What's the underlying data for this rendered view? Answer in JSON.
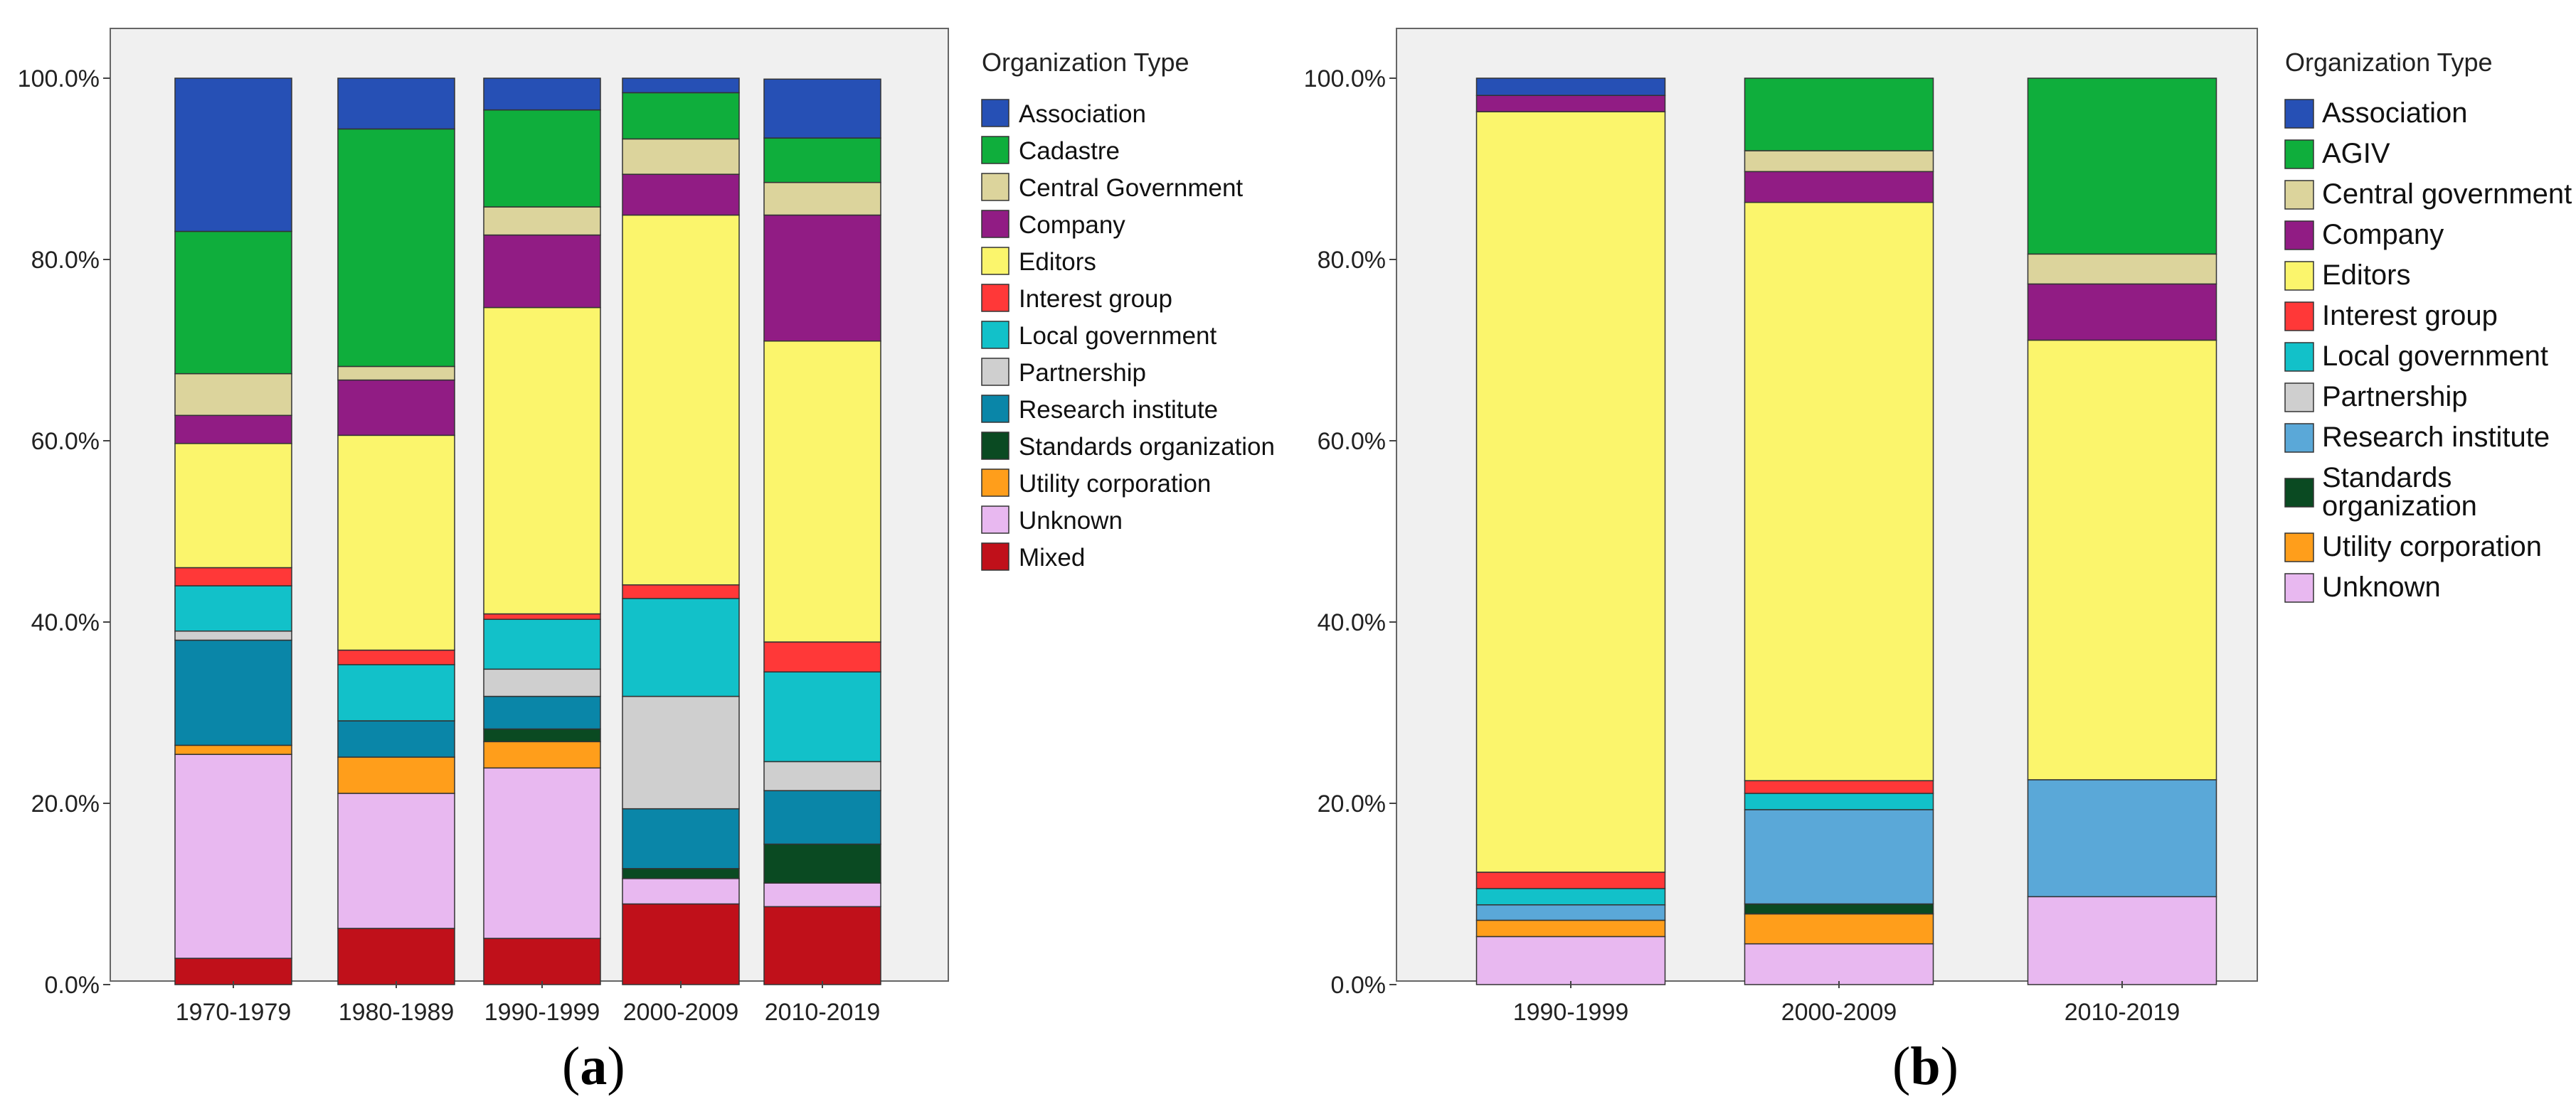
{
  "chart_data": [
    {
      "type": "bar",
      "stacked": true,
      "panel_label": "a",
      "legend_title": "Organization Type",
      "y_ticks": [
        "0.0%",
        "20.0%",
        "40.0%",
        "60.0%",
        "80.0%",
        "100.0%"
      ],
      "ylim": [
        0,
        100
      ],
      "categories": [
        "1970-1979",
        "1980-1989",
        "1990-1999",
        "2000-2009",
        "2010-2019"
      ],
      "legend_order": [
        "Association",
        "Cadastre",
        "Central Government",
        "Company",
        "Editors",
        "Interest group",
        "Local government",
        "Partnership",
        "Research institute",
        "Standards organization",
        "Utility corporation",
        "Unknown",
        "Mixed"
      ],
      "series": [
        {
          "name": "Mixed",
          "color": "#c0101a",
          "values": [
            2.9,
            6.2,
            5.1,
            8.9,
            8.6
          ]
        },
        {
          "name": "Unknown",
          "color": "#e8b8f0",
          "values": [
            22.5,
            14.9,
            18.8,
            2.8,
            2.6
          ]
        },
        {
          "name": "Utility corporation",
          "color": "#ff9e1b",
          "values": [
            1.0,
            4.0,
            2.9,
            0,
            0
          ]
        },
        {
          "name": "Standards organization",
          "color": "#0a4a22",
          "values": [
            0,
            0,
            1.4,
            1.1,
            4.3
          ]
        },
        {
          "name": "Research institute",
          "color": "#0a86a8",
          "values": [
            11.6,
            4.0,
            3.6,
            6.6,
            5.9
          ]
        },
        {
          "name": "Partnership",
          "color": "#cfcfcf",
          "values": [
            1.0,
            0,
            3.0,
            12.4,
            3.2
          ]
        },
        {
          "name": "Local government",
          "color": "#12c1c9",
          "values": [
            5.0,
            6.2,
            5.5,
            10.8,
            9.9
          ]
        },
        {
          "name": "Interest group",
          "color": "#ff3838",
          "values": [
            2.0,
            1.6,
            0.6,
            1.5,
            3.3
          ]
        },
        {
          "name": "Editors",
          "color": "#fbf56c",
          "values": [
            13.7,
            23.7,
            33.8,
            40.8,
            33.2
          ]
        },
        {
          "name": "Company",
          "color": "#911c84",
          "values": [
            3.1,
            6.1,
            8.0,
            4.5,
            13.9
          ]
        },
        {
          "name": "Central Government",
          "color": "#dcd49c",
          "values": [
            4.6,
            1.5,
            3.1,
            3.9,
            3.6
          ]
        },
        {
          "name": "Cadastre",
          "color": "#0fae3c",
          "values": [
            15.7,
            26.2,
            10.7,
            5.1,
            4.9
          ]
        },
        {
          "name": "Association",
          "color": "#2650b5",
          "values": [
            16.9,
            5.6,
            3.5,
            1.6,
            6.5
          ]
        }
      ]
    },
    {
      "type": "bar",
      "stacked": true,
      "panel_label": "b",
      "legend_title": "Organization Type",
      "y_ticks": [
        "0.0%",
        "20.0%",
        "40.0%",
        "60.0%",
        "80.0%",
        "100.0%"
      ],
      "ylim": [
        0,
        100
      ],
      "categories": [
        "1990-1999",
        "2000-2009",
        "2010-2019"
      ],
      "legend_order": [
        "Association",
        "AGIV",
        "Central government",
        "Company",
        "Editors",
        "Interest group",
        "Local government",
        "Partnership",
        "Research institute",
        "Standards organization",
        "Utility corporation",
        "Unknown"
      ],
      "series": [
        {
          "name": "Unknown",
          "color": "#e8b8f0",
          "values": [
            5.3,
            4.5,
            9.7
          ]
        },
        {
          "name": "Utility corporation",
          "color": "#ff9e1b",
          "values": [
            1.8,
            3.3,
            0
          ]
        },
        {
          "name": "Standards organization",
          "color": "#0a4a22",
          "values": [
            0,
            1.1,
            0
          ]
        },
        {
          "name": "Research institute",
          "color": "#5aa8d8",
          "values": [
            1.7,
            10.4,
            12.9
          ]
        },
        {
          "name": "Partnership",
          "color": "#cfcfcf",
          "values": [
            0,
            0,
            0
          ]
        },
        {
          "name": "Local government",
          "color": "#12c1c9",
          "values": [
            1.8,
            1.8,
            0
          ]
        },
        {
          "name": "Interest group",
          "color": "#ff3838",
          "values": [
            1.8,
            1.4,
            0
          ]
        },
        {
          "name": "Editors",
          "color": "#fbf56c",
          "values": [
            83.9,
            63.8,
            48.5
          ]
        },
        {
          "name": "Company",
          "color": "#911c84",
          "values": [
            1.8,
            3.4,
            6.2
          ]
        },
        {
          "name": "Central government",
          "color": "#dcd49c",
          "values": [
            0,
            2.3,
            3.3
          ]
        },
        {
          "name": "AGIV",
          "color": "#0fae3c",
          "values": [
            0,
            8.0,
            19.4
          ]
        },
        {
          "name": "Association",
          "color": "#2650b5",
          "values": [
            1.9,
            0,
            0
          ]
        }
      ]
    }
  ]
}
